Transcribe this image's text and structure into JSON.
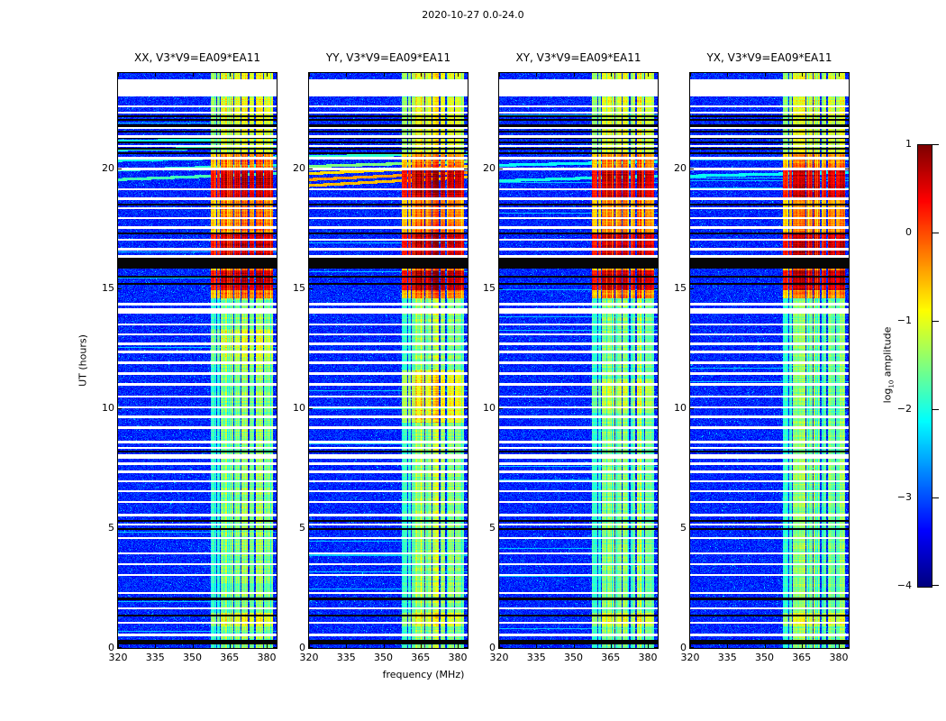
{
  "title": "2020-10-27 0.0-24.0",
  "xlabel": "frequency (MHz)",
  "ylabel": "UT (hours)",
  "colorbar": {
    "label_prefix": "log",
    "label_sub": "10",
    "label_suffix": " amplitude",
    "vmin": -4,
    "vmax": 1,
    "ticks": [
      {
        "label": "1",
        "v": 1
      },
      {
        "label": "0",
        "v": 0
      },
      {
        "label": "−1",
        "v": -1
      },
      {
        "label": "−2",
        "v": -2
      },
      {
        "label": "−3",
        "v": -3
      },
      {
        "label": "−4",
        "v": -4
      }
    ]
  },
  "chart_data": {
    "type": "heatmap",
    "description": "Four dynamic-spectrum (frequency vs UT time) panels of cross-correlation amplitude for baseline V3*V9=EA09*EA11 on 2020-10-27, polarizations XX, YY, XY, YX, with jet colormap of log10 amplitude from -4 to 1. Blue background noise ~-3.3; persistent RFI band 357-383 MHz at ~-2 to -1; strong activity 14.6-20.6 UT reaching 0 to 1; many horizontal white data gaps and black flagged rows.",
    "x": {
      "label": "frequency (MHz)",
      "range": [
        320,
        384
      ],
      "ticks": [
        320,
        335,
        350,
        365,
        380
      ]
    },
    "y": {
      "label": "UT (hours)",
      "range": [
        0,
        24
      ],
      "ticks": [
        0,
        5,
        10,
        15,
        20
      ]
    },
    "colorscale": {
      "name": "jet",
      "vmin": -4,
      "vmax": 1
    },
    "noise_level": -3.3,
    "band": {
      "f_lo": 357,
      "f_hi": 383,
      "subbands": [
        [
          357.5,
          359.5,
          0.5
        ],
        [
          360.0,
          361.0,
          0.45
        ],
        [
          361.5,
          366.5,
          0.85
        ],
        [
          367.0,
          369.5,
          0.7
        ],
        [
          370.0,
          372.5,
          0.9
        ],
        [
          373.0,
          375.0,
          0.65
        ],
        [
          375.5,
          378.5,
          0.85
        ],
        [
          379.0,
          382.5,
          0.78
        ]
      ]
    },
    "active": {
      "t0": 14.6,
      "t1": 20.6
    },
    "hot_rows": [
      [
        14.95,
        15.75
      ],
      [
        16.35,
        17.3
      ],
      [
        18.8,
        20.0
      ]
    ],
    "warm_intervals": [
      [
        0.9,
        1.45
      ],
      [
        20.6,
        23.0
      ],
      [
        23.75,
        24.0
      ]
    ],
    "white_gaps": [
      [
        23.02,
        23.75
      ],
      [
        13.95,
        14.18
      ],
      [
        7.9,
        8.08
      ]
    ],
    "white_lines": [
      0.55,
      1.05,
      1.65,
      2.3,
      3.05,
      3.5,
      3.95,
      4.6,
      5.15,
      5.55,
      6.1,
      6.55,
      6.95,
      7.35,
      7.7,
      8.35,
      8.6,
      9.2,
      9.65,
      10.05,
      10.5,
      11.0,
      11.45,
      11.9,
      12.35,
      12.7,
      13.1,
      13.5,
      14.35,
      16.35,
      16.65,
      17.05,
      17.55,
      17.95,
      18.35,
      18.75,
      19.15,
      20.0,
      20.45,
      20.95,
      21.35,
      21.7,
      22.35,
      22.6
    ],
    "black_lines": [
      1.35,
      2.05,
      4.95,
      5.3,
      8.2,
      15.2,
      15.5,
      17.3,
      18.5,
      20.65,
      20.85,
      21.1,
      21.3,
      21.55,
      21.8,
      22.05,
      22.2
    ],
    "black_gaps": [
      [
        15.85,
        16.28
      ],
      [
        0.15,
        0.32
      ]
    ],
    "panels": [
      {
        "title": "XX, V3*V9=EA09*EA11",
        "seed": 101,
        "band_gain": 1.0,
        "warm_blobs": [
          [
            11.8,
            13.3,
            0.3
          ]
        ],
        "streaks": [
          {
            "t": 19.55,
            "v": -1.8,
            "slope": 0.25
          },
          {
            "t": 19.95,
            "v": -1.95,
            "slope": 0.2
          },
          {
            "t": 20.35,
            "v": -2.05,
            "slope": 0.15
          },
          {
            "t": 20.8,
            "v": -1.9,
            "slope": 0.1
          },
          {
            "t": 21.15,
            "v": -2.05,
            "slope": 0.1
          }
        ]
      },
      {
        "title": "YY, V3*V9=EA09*EA11",
        "seed": 202,
        "band_gain": 1.05,
        "warm_blobs": [
          [
            9.4,
            11.6,
            0.55
          ]
        ],
        "streaks": [
          {
            "t": 19.3,
            "v": -0.55,
            "slope": 0.35
          },
          {
            "t": 19.55,
            "v": -0.4,
            "slope": 0.3
          },
          {
            "t": 19.8,
            "v": -0.7,
            "slope": 0.3
          },
          {
            "t": 20.1,
            "v": -1.5,
            "slope": 0.2
          },
          {
            "t": 20.5,
            "v": -1.9,
            "slope": 0.15
          }
        ]
      },
      {
        "title": "XY, V3*V9=EA09*EA11",
        "seed": 303,
        "band_gain": 0.93,
        "warm_blobs": [
          [
            9.8,
            11.2,
            0.3
          ]
        ],
        "streaks": [
          {
            "t": 19.5,
            "v": -2.0,
            "slope": 0.2
          },
          {
            "t": 20.15,
            "v": -2.1,
            "slope": 0.15
          }
        ]
      },
      {
        "title": "YX, V3*V9=EA09*EA11",
        "seed": 404,
        "band_gain": 0.93,
        "warm_blobs": [],
        "streaks": [
          {
            "t": 19.7,
            "v": -2.1,
            "slope": 0.15
          }
        ]
      }
    ]
  }
}
